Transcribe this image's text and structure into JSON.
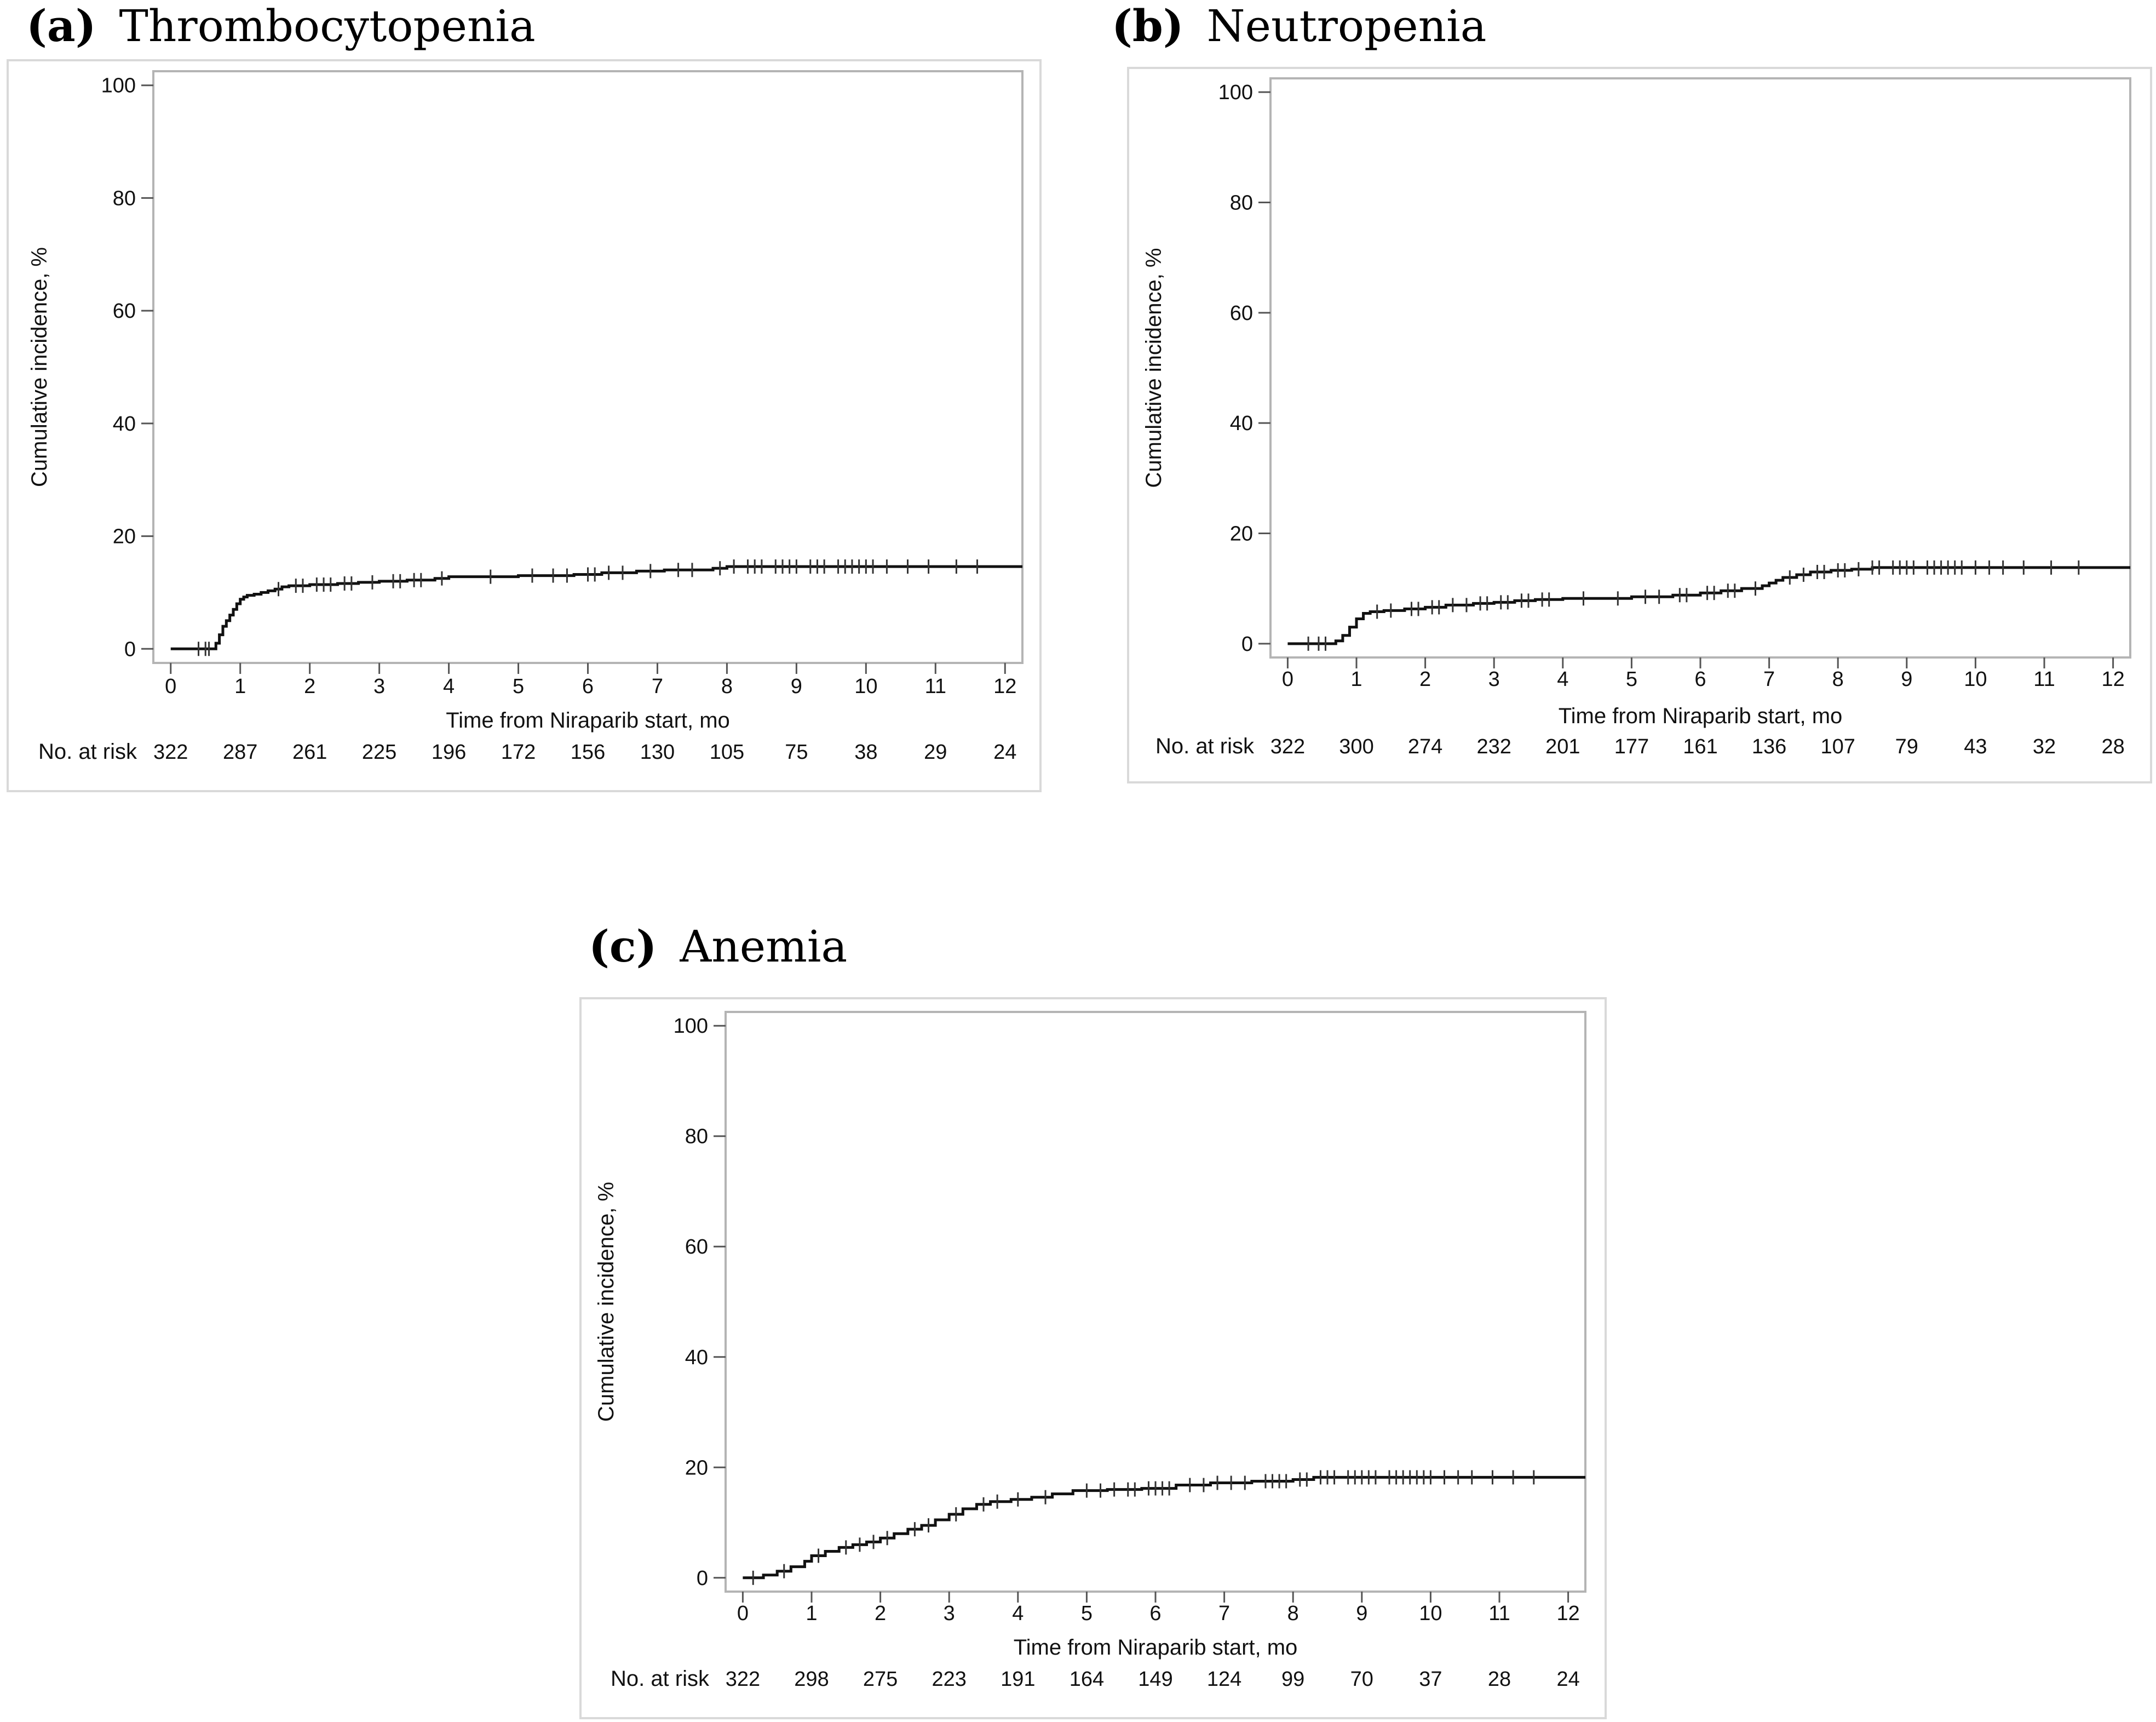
{
  "figure": {
    "panels": [
      {
        "id": "a",
        "label": "(a)",
        "title": "Thrombocytopenia"
      },
      {
        "id": "b",
        "label": "(b)",
        "title": "Neutropenia"
      },
      {
        "id": "c",
        "label": "(c)",
        "title": "Anemia"
      }
    ]
  },
  "chart_data": [
    {
      "type": "line",
      "panel": "(a)",
      "title": "Thrombocytopenia",
      "xlabel": "Time from Niraparib start, mo",
      "ylabel": "Cumulative incidence, %",
      "xlim": [
        -0.25,
        12.25
      ],
      "ylim": [
        -2.5,
        102.5
      ],
      "xticks": [
        "0",
        "1",
        "2",
        "3",
        "4",
        "5",
        "6",
        "7",
        "8",
        "9",
        "10",
        "11",
        "12"
      ],
      "yticks": [
        "0",
        "20",
        "40",
        "60",
        "80",
        "100"
      ],
      "risk_label": "No. at risk",
      "risk_values": [
        "322",
        "287",
        "261",
        "225",
        "196",
        "172",
        "156",
        "130",
        "105",
        "75",
        "38",
        "29",
        "24"
      ],
      "series": [
        {
          "name": "Thrombocytopenia",
          "x": [
            0,
            0.6,
            0.65,
            0.7,
            0.75,
            0.8,
            0.85,
            0.9,
            0.95,
            1.0,
            1.05,
            1.1,
            1.2,
            1.3,
            1.4,
            1.5,
            1.6,
            1.7,
            2.0,
            2.4,
            2.7,
            3.0,
            3.4,
            3.8,
            4.0,
            5.0,
            5.8,
            6.2,
            6.7,
            7.1,
            7.8,
            8.0,
            12.25
          ],
          "y": [
            0,
            0,
            1,
            2.5,
            4,
            5,
            6,
            7,
            8,
            8.8,
            9.2,
            9.5,
            9.7,
            10,
            10.3,
            10.6,
            11,
            11.2,
            11.4,
            11.6,
            11.8,
            12,
            12.2,
            12.5,
            12.8,
            13,
            13.2,
            13.5,
            13.8,
            14,
            14.3,
            14.6,
            14.6
          ],
          "censor_x": [
            0.4,
            0.5,
            0.55,
            1.55,
            1.8,
            1.9,
            2.1,
            2.2,
            2.3,
            2.5,
            2.6,
            2.9,
            3.2,
            3.3,
            3.5,
            3.6,
            3.9,
            4.6,
            5.2,
            5.5,
            5.7,
            6.0,
            6.1,
            6.3,
            6.5,
            6.9,
            7.3,
            7.5,
            7.9,
            8.1,
            8.3,
            8.4,
            8.5,
            8.7,
            8.8,
            8.9,
            9.0,
            9.2,
            9.3,
            9.4,
            9.6,
            9.7,
            9.8,
            9.9,
            10.0,
            10.1,
            10.3,
            10.6,
            10.9,
            11.3,
            11.6
          ]
        }
      ]
    },
    {
      "type": "line",
      "panel": "(b)",
      "title": "Neutropenia",
      "xlabel": "Time from Niraparib start, mo",
      "ylabel": "Cumulative incidence, %",
      "xlim": [
        -0.25,
        12.25
      ],
      "ylim": [
        -2.5,
        102.5
      ],
      "xticks": [
        "0",
        "1",
        "2",
        "3",
        "4",
        "5",
        "6",
        "7",
        "8",
        "9",
        "10",
        "11",
        "12"
      ],
      "yticks": [
        "0",
        "20",
        "40",
        "60",
        "80",
        "100"
      ],
      "risk_label": "No. at risk",
      "risk_values": [
        "322",
        "300",
        "274",
        "232",
        "201",
        "177",
        "161",
        "136",
        "107",
        "79",
        "43",
        "32",
        "28"
      ],
      "series": [
        {
          "name": "Neutropenia",
          "x": [
            0,
            0.6,
            0.7,
            0.8,
            0.9,
            1.0,
            1.1,
            1.2,
            1.4,
            1.7,
            2.0,
            2.3,
            2.7,
            3.0,
            3.3,
            3.6,
            4.0,
            5.0,
            5.6,
            6.0,
            6.3,
            6.6,
            6.9,
            7.0,
            7.1,
            7.2,
            7.4,
            7.6,
            7.9,
            8.2,
            8.5,
            12.25
          ],
          "y": [
            0,
            0,
            0.5,
            1.5,
            3,
            4.5,
            5.5,
            5.8,
            6,
            6.3,
            6.6,
            7,
            7.3,
            7.5,
            7.8,
            8,
            8.2,
            8.5,
            8.8,
            9.2,
            9.6,
            10,
            10.5,
            11,
            11.5,
            12,
            12.5,
            13,
            13.3,
            13.5,
            13.8,
            13.8
          ],
          "censor_x": [
            0.3,
            0.45,
            0.55,
            1.3,
            1.5,
            1.8,
            1.9,
            2.1,
            2.2,
            2.4,
            2.6,
            2.8,
            2.9,
            3.1,
            3.2,
            3.4,
            3.5,
            3.7,
            3.8,
            4.3,
            4.8,
            5.2,
            5.4,
            5.7,
            5.8,
            6.1,
            6.2,
            6.4,
            6.5,
            6.8,
            7.3,
            7.5,
            7.7,
            7.8,
            8.0,
            8.1,
            8.3,
            8.5,
            8.6,
            8.8,
            8.9,
            9.0,
            9.1,
            9.3,
            9.4,
            9.5,
            9.6,
            9.7,
            9.8,
            10.0,
            10.2,
            10.4,
            10.7,
            11.1,
            11.5
          ]
        }
      ]
    },
    {
      "type": "line",
      "panel": "(c)",
      "title": "Anemia",
      "xlabel": "Time from Niraparib start, mo",
      "ylabel": "Cumulative incidence, %",
      "xlim": [
        -0.25,
        12.25
      ],
      "ylim": [
        -2.5,
        102.5
      ],
      "xticks": [
        "0",
        "1",
        "2",
        "3",
        "4",
        "5",
        "6",
        "7",
        "8",
        "9",
        "10",
        "11",
        "12"
      ],
      "yticks": [
        "0",
        "20",
        "40",
        "60",
        "80",
        "100"
      ],
      "risk_label": "No. at risk",
      "risk_values": [
        "322",
        "298",
        "275",
        "223",
        "191",
        "164",
        "149",
        "124",
        "99",
        "70",
        "37",
        "28",
        "24"
      ],
      "series": [
        {
          "name": "Anemia",
          "x": [
            0,
            0.3,
            0.5,
            0.7,
            0.9,
            1.0,
            1.2,
            1.4,
            1.6,
            1.8,
            2.0,
            2.2,
            2.4,
            2.6,
            2.8,
            3.0,
            3.2,
            3.4,
            3.6,
            3.9,
            4.2,
            4.5,
            4.8,
            5.3,
            5.8,
            6.3,
            6.8,
            7.4,
            8.0,
            8.3,
            12.25
          ],
          "y": [
            0,
            0.5,
            1.2,
            2,
            3,
            4,
            4.8,
            5.5,
            6,
            6.5,
            7.2,
            8,
            8.8,
            9.5,
            10.5,
            11.5,
            12.5,
            13.3,
            13.8,
            14.2,
            14.6,
            15.2,
            15.8,
            16,
            16.2,
            16.8,
            17.2,
            17.5,
            17.8,
            18.2,
            18.2
          ],
          "censor_x": [
            0.15,
            0.6,
            1.1,
            1.5,
            1.7,
            1.9,
            2.1,
            2.5,
            2.7,
            3.1,
            3.5,
            3.7,
            4.0,
            4.4,
            5.0,
            5.2,
            5.4,
            5.6,
            5.7,
            5.9,
            6.0,
            6.1,
            6.2,
            6.5,
            6.7,
            6.9,
            7.1,
            7.3,
            7.6,
            7.7,
            7.8,
            7.9,
            8.1,
            8.2,
            8.4,
            8.5,
            8.6,
            8.8,
            8.9,
            9.0,
            9.1,
            9.2,
            9.4,
            9.5,
            9.6,
            9.7,
            9.8,
            9.9,
            10.0,
            10.2,
            10.4,
            10.6,
            10.9,
            11.2,
            11.5
          ]
        }
      ]
    }
  ]
}
